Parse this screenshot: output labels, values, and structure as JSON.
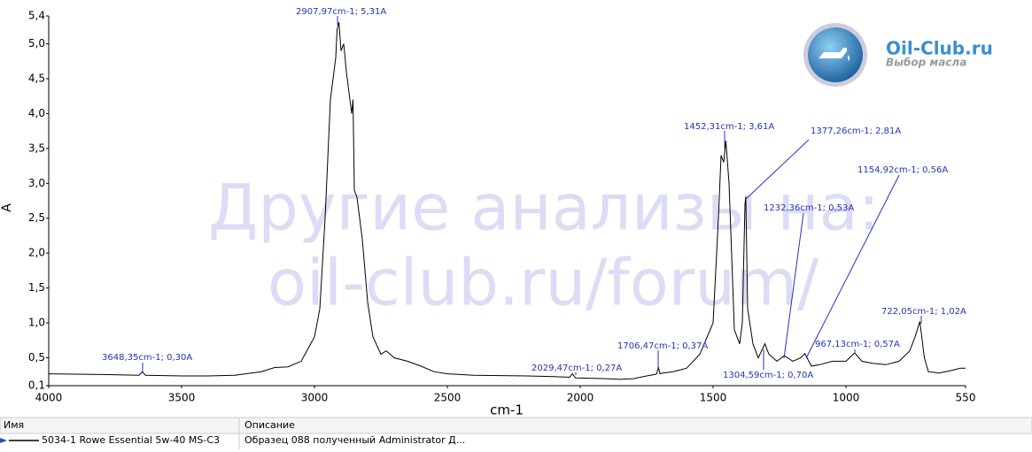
{
  "chart_data": {
    "type": "line",
    "xlabel": "cm-1",
    "ylabel": "A",
    "xlim": [
      4000,
      550
    ],
    "ylim": [
      0.1,
      5.4
    ],
    "xticks": [
      4000,
      3500,
      3000,
      2500,
      2000,
      1500,
      1000,
      550
    ],
    "yticks": [
      {
        "value": 0.1,
        "label": "0,1"
      },
      {
        "value": 0.5,
        "label": "0,5"
      },
      {
        "value": 1.0,
        "label": "1,0"
      },
      {
        "value": 1.5,
        "label": "1,5"
      },
      {
        "value": 2.0,
        "label": "2,0"
      },
      {
        "value": 2.5,
        "label": "2,5"
      },
      {
        "value": 3.0,
        "label": "3,0"
      },
      {
        "value": 3.5,
        "label": "3,5"
      },
      {
        "value": 4.0,
        "label": "4,0"
      },
      {
        "value": 4.5,
        "label": "4,5"
      },
      {
        "value": 5.0,
        "label": "5,0"
      },
      {
        "value": 5.4,
        "label": "5,4"
      }
    ],
    "grid": false,
    "x": [
      4000,
      3800,
      3660,
      3648,
      3636,
      3500,
      3400,
      3300,
      3200,
      3150,
      3100,
      3050,
      3000,
      2980,
      2960,
      2940,
      2930,
      2920,
      2915,
      2908,
      2900,
      2890,
      2880,
      2870,
      2860,
      2855,
      2850,
      2840,
      2820,
      2800,
      2780,
      2750,
      2730,
      2700,
      2650,
      2600,
      2550,
      2500,
      2400,
      2200,
      2100,
      2040,
      2029,
      2018,
      1900,
      1850,
      1800,
      1750,
      1720,
      1712,
      1706,
      1700,
      1690,
      1650,
      1600,
      1550,
      1500,
      1480,
      1470,
      1460,
      1452,
      1440,
      1420,
      1400,
      1390,
      1380,
      1377,
      1370,
      1350,
      1330,
      1305,
      1290,
      1260,
      1232,
      1200,
      1170,
      1155,
      1130,
      1100,
      1050,
      1000,
      967,
      940,
      900,
      850,
      800,
      760,
      740,
      722,
      705,
      690,
      650,
      600,
      570,
      550
    ],
    "series": [
      {
        "name": "5034-1 Rowe Essential 5w-40 MS-C3",
        "color": "#000000",
        "values": [
          0.27,
          0.26,
          0.25,
          0.3,
          0.25,
          0.24,
          0.24,
          0.25,
          0.3,
          0.36,
          0.37,
          0.45,
          0.8,
          1.2,
          2.5,
          4.2,
          4.5,
          4.8,
          5.2,
          5.31,
          4.9,
          5.0,
          4.6,
          4.3,
          4.0,
          4.2,
          2.9,
          2.8,
          2.2,
          1.3,
          0.8,
          0.55,
          0.6,
          0.5,
          0.45,
          0.38,
          0.3,
          0.27,
          0.25,
          0.24,
          0.23,
          0.22,
          0.27,
          0.21,
          0.2,
          0.19,
          0.2,
          0.24,
          0.26,
          0.27,
          0.37,
          0.27,
          0.28,
          0.3,
          0.35,
          0.55,
          1.0,
          2.5,
          3.4,
          3.3,
          3.61,
          3.0,
          0.9,
          0.7,
          1.0,
          2.7,
          2.81,
          1.2,
          0.7,
          0.5,
          0.7,
          0.55,
          0.45,
          0.53,
          0.45,
          0.5,
          0.56,
          0.38,
          0.4,
          0.45,
          0.45,
          0.57,
          0.45,
          0.42,
          0.4,
          0.45,
          0.6,
          0.8,
          1.02,
          0.5,
          0.3,
          0.28,
          0.32,
          0.35,
          0.35
        ]
      }
    ],
    "annotations": [
      "3648,35cm-1; 0,30A",
      "2907,97cm-1; 5,31A",
      "2029,47cm-1; 0,27A",
      "1706,47cm-1; 0,37A",
      "1452,31cm-1; 3,61A",
      "1377,26cm-1; 2,81A",
      "1232,36cm-1; 0,53A",
      "1154,92cm-1; 0,56A",
      "967,13cm-1; 0,57A",
      "1304,59cm-1; 0,70A",
      "722,05cm-1; 1,02A"
    ]
  },
  "watermark": [
    "Другие анализы на:",
    "oil-club.ru/forum/"
  ],
  "logo": {
    "title": "Oil-Club.ru",
    "subtitle": "Выбор масла"
  },
  "table": {
    "columns": [
      "Имя",
      "Описание"
    ],
    "description": "Образец 088 полученный Administrator Д..."
  }
}
